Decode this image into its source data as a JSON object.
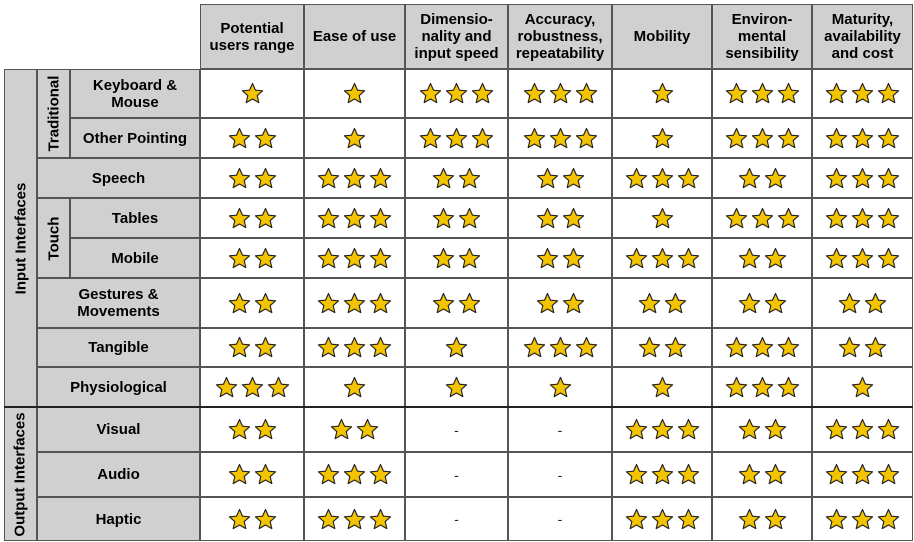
{
  "colors": {
    "header_bg": "#d0d0d0",
    "star_fill": "#f5c400",
    "star_stroke": "#222222",
    "border": "#555555"
  },
  "icon": "star-icon",
  "columns": [
    "Potential\nusers range",
    "Ease of use",
    "Dimensio-\nnality and\ninput speed",
    "Accuracy,\nrobustness,\nrepeatability",
    "Mobility",
    "Environ-\nmental\nsensibility",
    "Maturity,\navailability\nand cost"
  ],
  "groups": {
    "input": "Input Interfaces",
    "output": "Output Interfaces",
    "traditional": "Traditional",
    "touch": "Touch"
  },
  "rows": [
    {
      "label": "Keyboard &\nMouse",
      "ratings": [
        1,
        1,
        3,
        3,
        1,
        3,
        3
      ]
    },
    {
      "label": "Other Pointing",
      "ratings": [
        2,
        1,
        3,
        3,
        1,
        3,
        3
      ]
    },
    {
      "label": "Speech",
      "ratings": [
        2,
        3,
        2,
        2,
        3,
        2,
        3
      ]
    },
    {
      "label": "Tables",
      "ratings": [
        2,
        3,
        2,
        2,
        1,
        3,
        3
      ]
    },
    {
      "label": "Mobile",
      "ratings": [
        2,
        3,
        2,
        2,
        3,
        2,
        3
      ]
    },
    {
      "label": "Gestures &\nMovements",
      "ratings": [
        2,
        3,
        2,
        2,
        2,
        2,
        2
      ]
    },
    {
      "label": "Tangible",
      "ratings": [
        2,
        3,
        1,
        3,
        2,
        3,
        2
      ]
    },
    {
      "label": "Physiological",
      "ratings": [
        3,
        1,
        1,
        1,
        1,
        3,
        1
      ]
    },
    {
      "label": "Visual",
      "ratings": [
        2,
        2,
        "-",
        "-",
        3,
        2,
        3
      ]
    },
    {
      "label": "Audio",
      "ratings": [
        2,
        3,
        "-",
        "-",
        3,
        2,
        3
      ]
    },
    {
      "label": "Haptic",
      "ratings": [
        2,
        3,
        "-",
        "-",
        3,
        2,
        3
      ]
    }
  ]
}
